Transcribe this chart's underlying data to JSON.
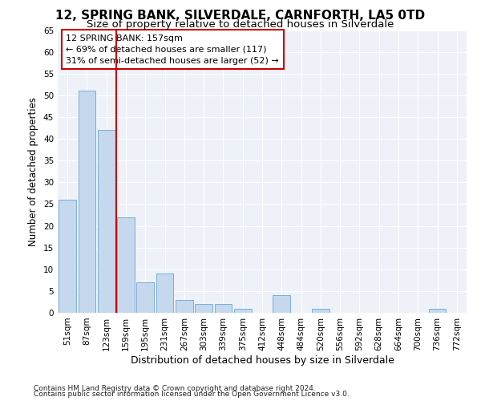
{
  "title": "12, SPRING BANK, SILVERDALE, CARNFORTH, LA5 0TD",
  "subtitle": "Size of property relative to detached houses in Silverdale",
  "xlabel": "Distribution of detached houses by size in Silverdale",
  "ylabel": "Number of detached properties",
  "categories": [
    "51sqm",
    "87sqm",
    "123sqm",
    "159sqm",
    "195sqm",
    "231sqm",
    "267sqm",
    "303sqm",
    "339sqm",
    "375sqm",
    "412sqm",
    "448sqm",
    "484sqm",
    "520sqm",
    "556sqm",
    "592sqm",
    "628sqm",
    "664sqm",
    "700sqm",
    "736sqm",
    "772sqm"
  ],
  "values": [
    26,
    51,
    42,
    22,
    7,
    9,
    3,
    2,
    2,
    1,
    0,
    4,
    0,
    1,
    0,
    0,
    0,
    0,
    0,
    1,
    0
  ],
  "bar_color": "#c5d8ed",
  "bar_edge_color": "#7aaed6",
  "highlight_line_index": 3,
  "highlight_line_color": "#cc0000",
  "annotation_line1": "12 SPRING BANK: 157sqm",
  "annotation_line2": "← 69% of detached houses are smaller (117)",
  "annotation_line3": "31% of semi-detached houses are larger (52) →",
  "annotation_box_color": "#cc0000",
  "ylim": [
    0,
    65
  ],
  "yticks": [
    0,
    5,
    10,
    15,
    20,
    25,
    30,
    35,
    40,
    45,
    50,
    55,
    60,
    65
  ],
  "background_color": "#eef2f8",
  "grid_color": "#ffffff",
  "fig_background": "#ffffff",
  "footer_line1": "Contains HM Land Registry data © Crown copyright and database right 2024.",
  "footer_line2": "Contains public sector information licensed under the Open Government Licence v3.0.",
  "title_fontsize": 11,
  "subtitle_fontsize": 9.5,
  "xlabel_fontsize": 9,
  "ylabel_fontsize": 8.5,
  "tick_fontsize": 7.5,
  "annotation_fontsize": 8,
  "footer_fontsize": 6.5
}
